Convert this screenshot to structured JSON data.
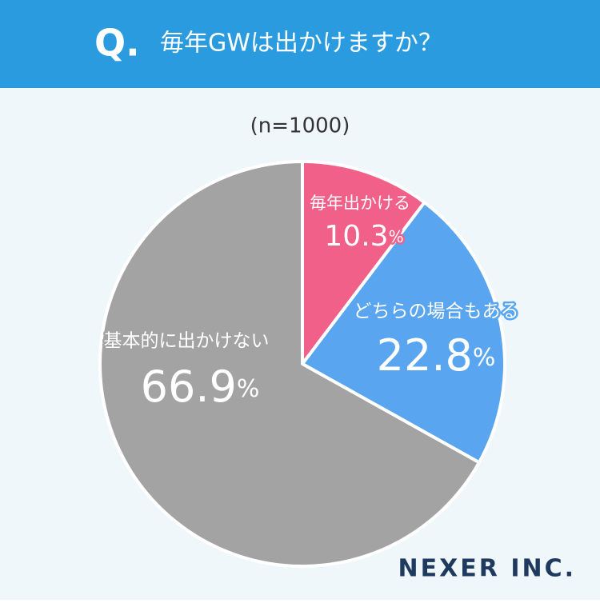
{
  "header": {
    "mark": "Q.",
    "title": "毎年GWは出かけますか？"
  },
  "chart_data": {
    "type": "pie",
    "subtitle": "(n=1000)",
    "categories": [
      "毎年出かける",
      "どちらの場合もある",
      "基本的に出かけない"
    ],
    "values": [
      10.3,
      22.8,
      66.9
    ],
    "value_labels": [
      "10.3%",
      "22.8%",
      "66.9%"
    ],
    "colors": [
      "#f06088",
      "#5aa5ef",
      "#a3a3a3"
    ]
  },
  "footer": {
    "brand": "NEXER INC."
  }
}
